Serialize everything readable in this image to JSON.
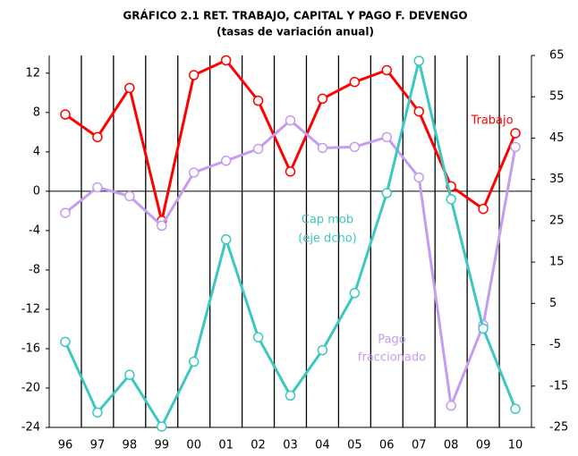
{
  "chart_data": {
    "type": "line",
    "title": "GRÁFICO 2.1  RET. TRABAJO, CAPITAL Y PAGO F. DEVENGO",
    "subtitle": "(tasas de variación anual)",
    "categories": [
      "96",
      "97",
      "98",
      "99",
      "00",
      "01",
      "02",
      "03",
      "04",
      "05",
      "06",
      "07",
      "08",
      "09",
      "10"
    ],
    "series": [
      {
        "name": "Trabajo",
        "color": "#ff0000",
        "values": [
          7.8,
          5.5,
          10.5,
          -3,
          11.8,
          13.3,
          9.2,
          2,
          9.4,
          11.1,
          12.3,
          8.1,
          0.5,
          -1.8,
          5.9
        ]
      },
      {
        "name": "Pago fraccionado",
        "color": "#c59cf2",
        "values": [
          -2.2,
          0.4,
          -0.5,
          -3.5,
          1.9,
          3.1,
          4.3,
          7.2,
          4.4,
          4.5,
          5.5,
          1.4,
          -21.8,
          -13.6,
          4.5
        ]
      },
      {
        "name": "Cap mob (eje dcho)",
        "color": "#3cc8c0",
        "axis": "y2",
        "values": [
          -4.3,
          -21.4,
          -12.3,
          -24.8,
          -9.1,
          20.5,
          -3.2,
          -17.3,
          -6.3,
          7.5,
          31.7,
          63.7,
          30.2,
          -1.1,
          -20.5
        ]
      }
    ],
    "annotations": [
      {
        "text": "Trabajo",
        "series": 0
      },
      {
        "text": [
          "Pago",
          "fraccionado"
        ],
        "series": 1
      },
      {
        "text": [
          "Cap mob",
          "(eje dcho)"
        ],
        "series": 2
      }
    ],
    "ylim": [
      -24,
      13.8
    ],
    "yticks": [
      -24,
      -20,
      -16,
      -12,
      -8,
      -4,
      0,
      4,
      8,
      12
    ],
    "y2lim": [
      -25,
      65
    ],
    "y2ticks": [
      -25,
      -15,
      -5,
      5,
      15,
      25,
      35,
      45,
      55,
      65
    ],
    "grid": true
  }
}
